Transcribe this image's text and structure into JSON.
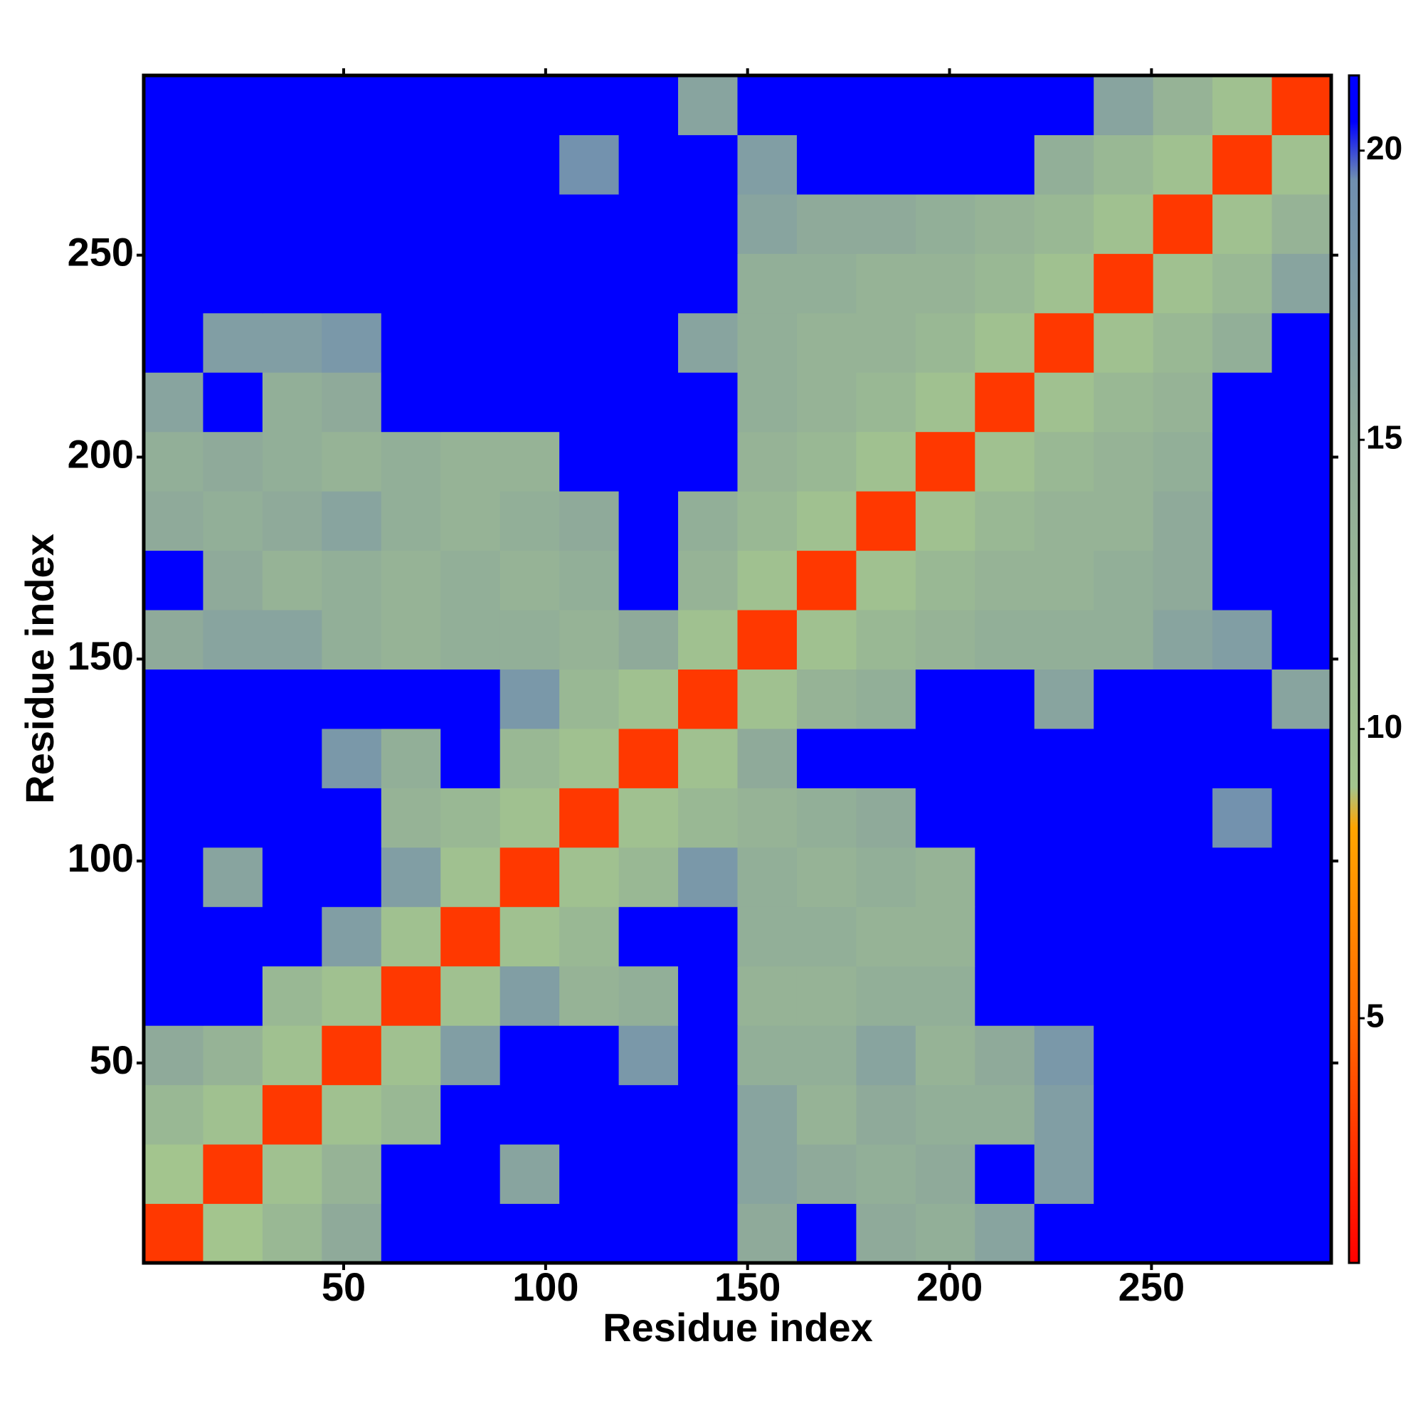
{
  "chart_data": {
    "type": "heatmap",
    "xlabel": "Residue index",
    "ylabel": "Residue index",
    "xlim": [
      0.5,
      294.5
    ],
    "ylim": [
      0.5,
      294.5
    ],
    "xticks": [
      50,
      100,
      150,
      200,
      250
    ],
    "yticks": [
      50,
      100,
      150,
      200,
      250
    ],
    "xbins": [
      0.5,
      15.2,
      29.9,
      44.6,
      59.3,
      74,
      88.7,
      103.4,
      118.1,
      132.8,
      147.5,
      162.2,
      176.9,
      191.6,
      206.3,
      221,
      235.7,
      250.4,
      265.1,
      279.8,
      294.5
    ],
    "ybins": [
      0.5,
      15.2,
      29.9,
      44.6,
      59.3,
      74,
      88.7,
      103.4,
      118.1,
      132.8,
      147.5,
      162.2,
      176.9,
      191.6,
      206.3,
      221,
      235.7,
      250.4,
      265.1,
      279.8,
      294.5
    ],
    "values": [
      [
        3,
        9,
        12,
        15,
        21,
        21,
        21,
        21,
        21,
        21,
        15,
        21,
        15,
        14,
        16,
        21,
        21,
        21,
        21,
        21
      ],
      [
        9,
        3,
        10,
        13,
        21,
        21,
        16,
        21,
        21,
        21,
        16,
        15,
        14,
        15,
        21,
        17,
        21,
        21,
        21,
        21
      ],
      [
        12,
        10,
        3,
        10,
        12,
        21,
        21,
        21,
        21,
        21,
        16,
        13,
        15,
        14,
        14,
        17,
        21,
        21,
        21,
        21
      ],
      [
        15,
        13,
        10,
        3,
        10,
        17,
        21,
        21,
        18,
        21,
        14,
        14,
        16,
        13,
        15,
        18,
        21,
        21,
        21,
        21
      ],
      [
        21,
        21,
        12,
        10,
        3,
        10,
        17,
        13,
        14,
        21,
        13,
        13,
        14,
        14,
        21,
        21,
        21,
        21,
        21,
        21
      ],
      [
        21,
        21,
        21,
        17,
        10,
        3,
        10,
        12,
        21,
        21,
        14,
        14,
        13,
        13,
        21,
        21,
        21,
        21,
        21,
        21
      ],
      [
        21,
        16,
        21,
        21,
        17,
        10,
        3,
        10,
        12,
        18,
        14,
        13,
        14,
        13,
        21,
        21,
        21,
        21,
        21,
        21
      ],
      [
        21,
        21,
        21,
        21,
        13,
        12,
        10,
        3,
        10,
        12,
        13,
        14,
        15,
        21,
        21,
        21,
        21,
        21,
        19,
        21
      ],
      [
        21,
        21,
        21,
        18,
        14,
        21,
        12,
        10,
        3,
        10,
        15,
        21,
        21,
        21,
        21,
        21,
        21,
        21,
        21,
        21
      ],
      [
        21,
        21,
        21,
        21,
        21,
        21,
        18,
        12,
        10,
        3,
        10,
        13,
        14,
        21,
        21,
        16,
        21,
        21,
        21,
        16
      ],
      [
        15,
        16,
        16,
        14,
        13,
        14,
        14,
        13,
        15,
        10,
        3,
        10,
        12,
        13,
        14,
        14,
        14,
        16,
        17,
        21
      ],
      [
        21,
        15,
        13,
        14,
        13,
        14,
        13,
        14,
        21,
        13,
        10,
        3,
        10,
        12,
        13,
        13,
        14,
        15,
        21,
        21
      ],
      [
        15,
        14,
        15,
        16,
        14,
        13,
        14,
        15,
        21,
        14,
        12,
        10,
        3,
        10,
        12,
        13,
        13,
        15,
        21,
        21
      ],
      [
        14,
        15,
        14,
        13,
        14,
        13,
        13,
        21,
        21,
        21,
        13,
        12,
        10,
        3,
        10,
        12,
        13,
        14,
        21,
        21
      ],
      [
        16,
        21,
        14,
        15,
        21,
        21,
        21,
        21,
        21,
        21,
        14,
        13,
        12,
        10,
        3,
        10,
        12,
        13,
        21,
        21
      ],
      [
        21,
        17,
        17,
        18,
        21,
        21,
        21,
        21,
        21,
        16,
        14,
        13,
        13,
        12,
        10,
        3,
        10,
        12,
        14,
        21
      ],
      [
        21,
        21,
        21,
        21,
        21,
        21,
        21,
        21,
        21,
        21,
        14,
        14,
        13,
        13,
        12,
        10,
        3,
        10,
        12,
        16
      ],
      [
        21,
        21,
        21,
        21,
        21,
        21,
        21,
        21,
        21,
        21,
        16,
        15,
        15,
        14,
        13,
        12,
        10,
        3,
        10,
        13
      ],
      [
        21,
        21,
        21,
        21,
        21,
        21,
        21,
        19,
        21,
        21,
        17,
        21,
        21,
        21,
        21,
        14,
        12,
        10,
        3,
        10
      ],
      [
        21,
        21,
        21,
        21,
        21,
        21,
        21,
        21,
        21,
        16,
        21,
        21,
        21,
        21,
        21,
        21,
        16,
        13,
        10,
        3
      ]
    ],
    "clim": [
      0.77,
      21.3
    ],
    "cticks": [
      5,
      10,
      15,
      20
    ],
    "colorscale": [
      {
        "value": 0.77,
        "color": "#ff0000"
      },
      {
        "value": 5,
        "color": "#ff6a00"
      },
      {
        "value": 8.3,
        "color": "#ffa500"
      },
      {
        "value": 9,
        "color": "#a3c58e"
      },
      {
        "value": 15,
        "color": "#8faa9a"
      },
      {
        "value": 19.5,
        "color": "#6f8fb0"
      },
      {
        "value": 20.5,
        "color": "#0000ff"
      },
      {
        "value": 21.3,
        "color": "#0000ff"
      }
    ]
  }
}
